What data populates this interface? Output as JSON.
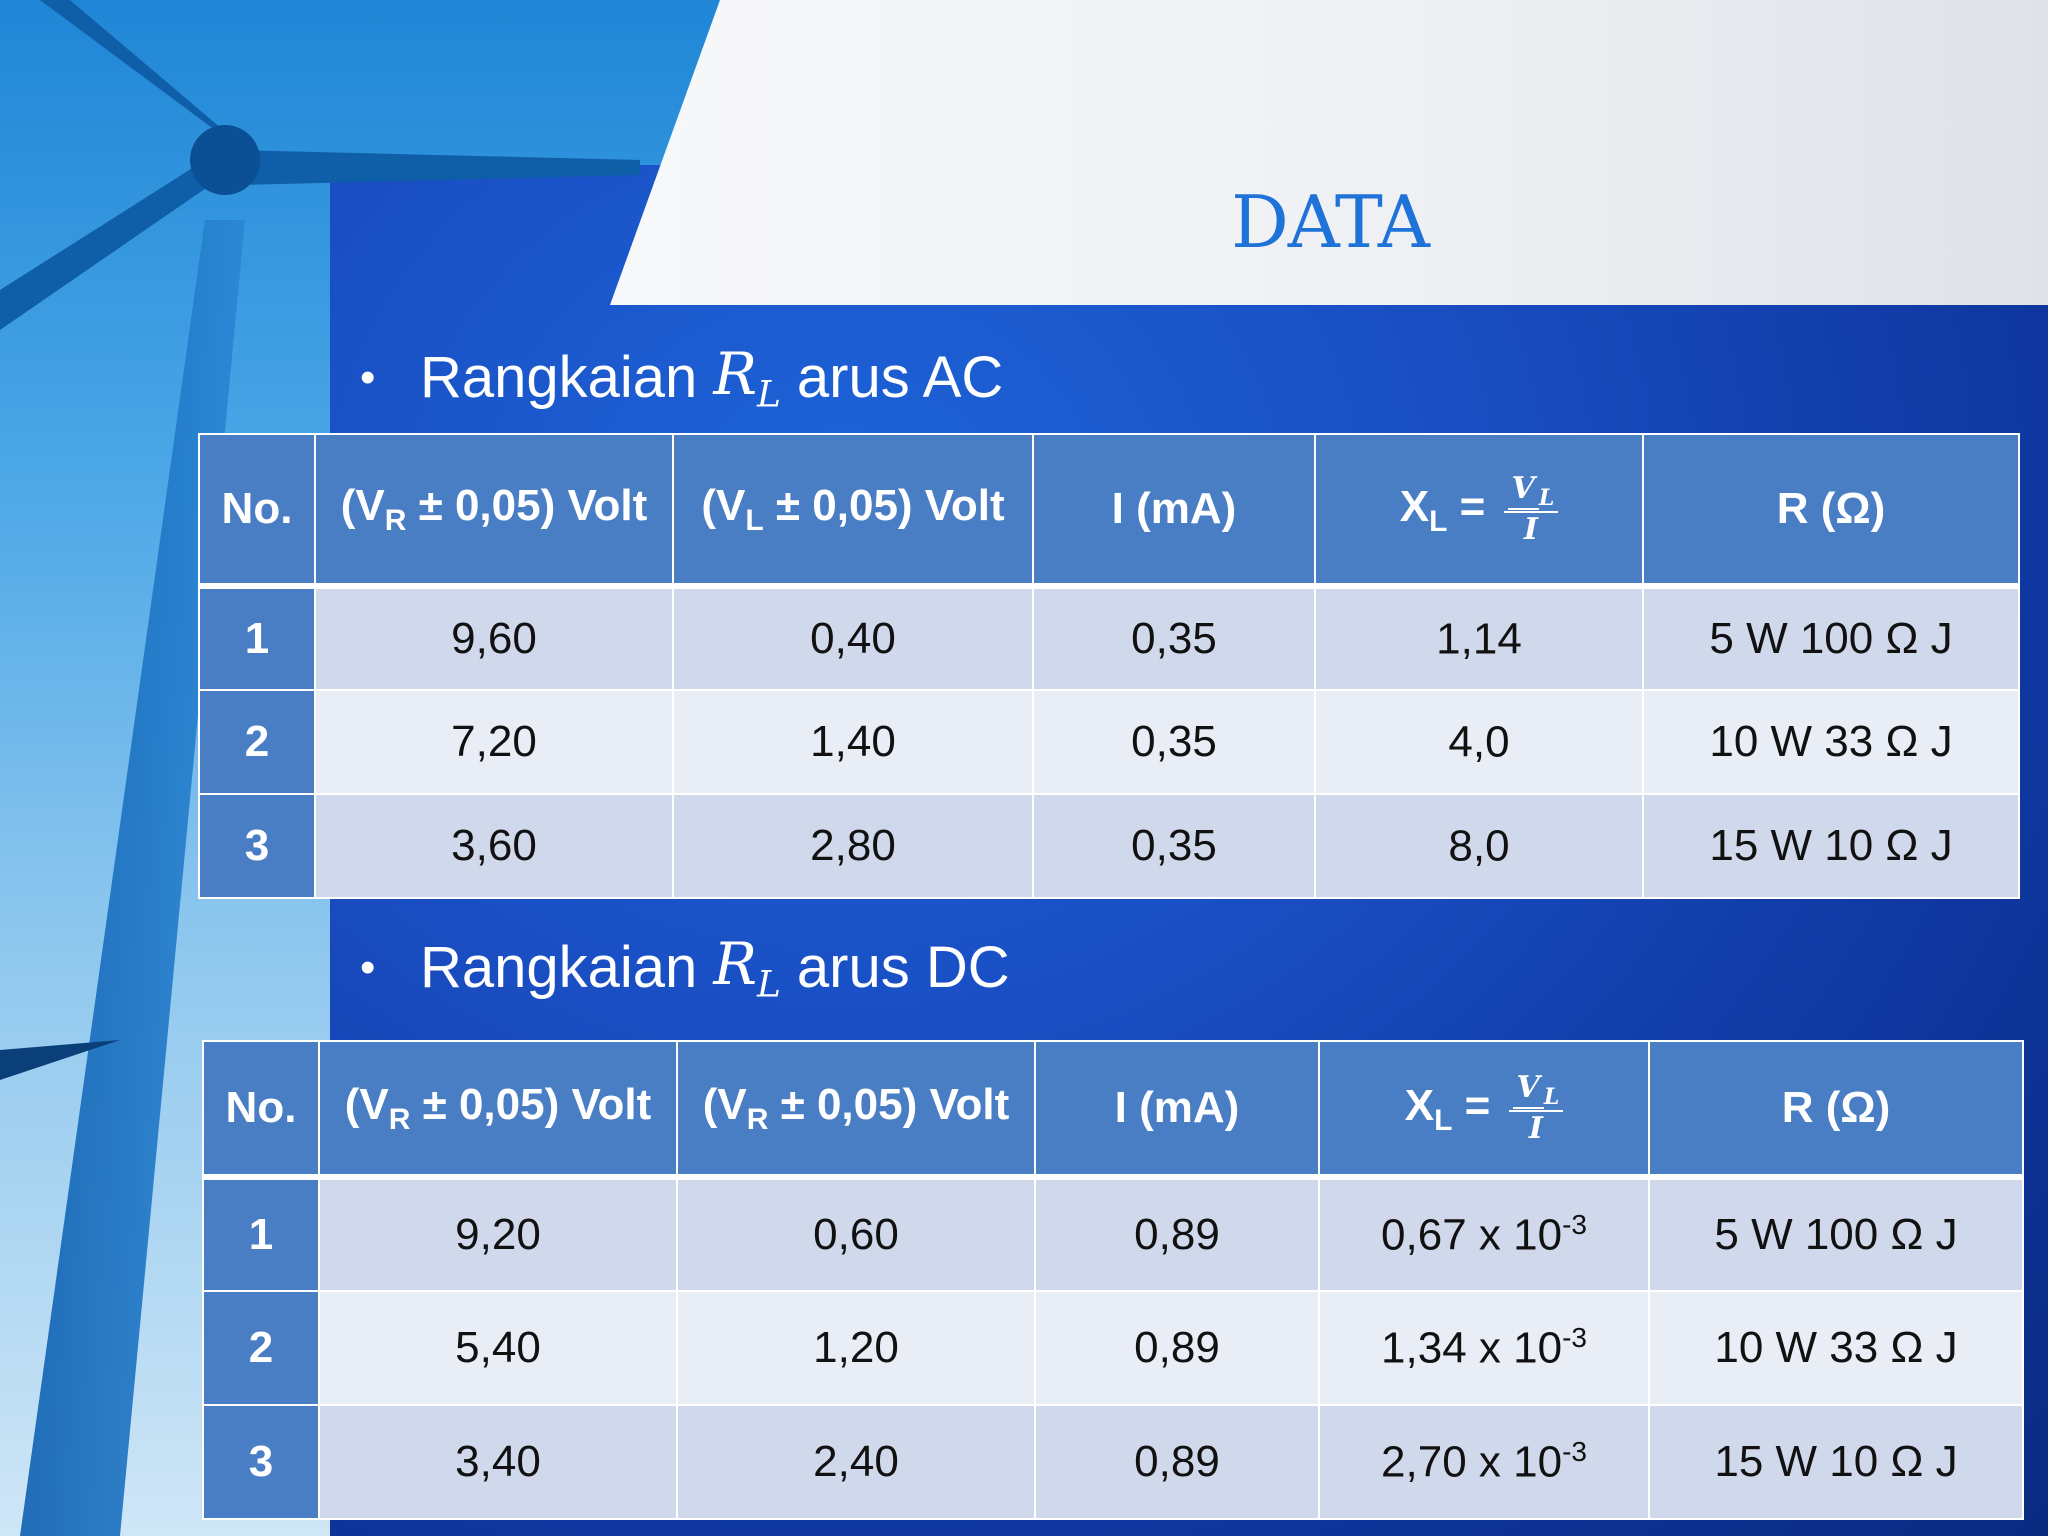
{
  "title": "DATA",
  "sections": [
    {
      "label_prefix": "Rangkaian",
      "label_var": "R",
      "label_sub": "L",
      "label_suffix": "arus AC",
      "headers": {
        "no": "No.",
        "vr_pre": "(V",
        "vr_sub": "R",
        "vr_post": " ± 0,05) Volt",
        "v2_pre": "(V",
        "v2_sub": "L",
        "v2_post": " ± 0,05) Volt",
        "i": "I (mA)",
        "xl_pre": "X",
        "xl_sub": "L",
        "xl_eq": " = ",
        "xl_num": "V",
        "xl_num_sub": "L",
        "xl_den": "I",
        "r": "R (Ω)"
      },
      "rows": [
        {
          "no": "1",
          "vr": "9,60",
          "v2": "0,40",
          "i": "0,35",
          "xl": "1,14",
          "xl_exp": "",
          "r": "5 W 100 Ω J"
        },
        {
          "no": "2",
          "vr": "7,20",
          "v2": "1,40",
          "i": "0,35",
          "xl": "4,0",
          "xl_exp": "",
          "r": "10  W 33 Ω J"
        },
        {
          "no": "3",
          "vr": "3,60",
          "v2": "2,80",
          "i": "0,35",
          "xl": "8,0",
          "xl_exp": "",
          "r": "15  W 10  Ω J"
        }
      ]
    },
    {
      "label_prefix": "Rangkaian",
      "label_var": "R",
      "label_sub": "L",
      "label_suffix": "arus DC",
      "headers": {
        "no": "No.",
        "vr_pre": "(V",
        "vr_sub": "R",
        "vr_post": " ± 0,05) Volt",
        "v2_pre": "(V",
        "v2_sub": "R",
        "v2_post": " ± 0,05) Volt",
        "i": "I (mA)",
        "xl_pre": "X",
        "xl_sub": "L",
        "xl_eq": " = ",
        "xl_num": "V",
        "xl_num_sub": "L",
        "xl_den": "I",
        "r": "R (Ω)"
      },
      "rows": [
        {
          "no": "1",
          "vr": "9,20",
          "v2": "0,60",
          "i": "0,89",
          "xl": "0,67 x 10",
          "xl_exp": "-3",
          "r": "5 W 100 Ω J"
        },
        {
          "no": "2",
          "vr": "5,40",
          "v2": "1,20",
          "i": "0,89",
          "xl": "1,34 x 10",
          "xl_exp": "-3",
          "r": "10  W 33 Ω J"
        },
        {
          "no": "3",
          "vr": "3,40",
          "v2": "2,40",
          "i": "0,89",
          "xl": "2,70 x 10",
          "xl_exp": "-3",
          "r": "15  W 10  Ω J"
        }
      ]
    }
  ]
}
